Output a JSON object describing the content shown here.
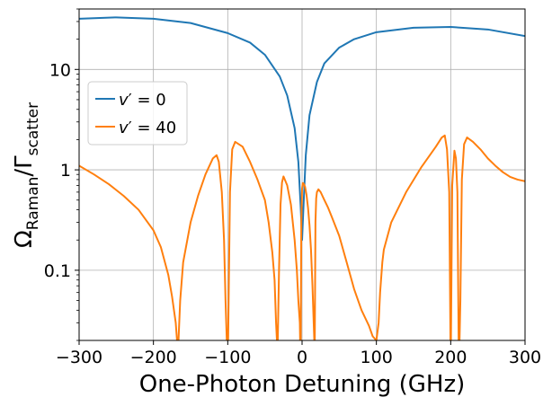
{
  "chart_data": {
    "type": "line",
    "xlabel": "One-Photon Detuning (GHz)",
    "ylabel": {
      "main": "Ω",
      "main_sub": "Raman",
      "sep": "/Γ",
      "sep_sub": "scatter"
    },
    "xlim": [
      -300,
      300
    ],
    "ylim": [
      0.02,
      40
    ],
    "yscale": "log",
    "grid": true,
    "x_ticks": [
      -300,
      -200,
      -100,
      0,
      100,
      200,
      300
    ],
    "x_tick_labels": [
      "−300",
      "−200",
      "−100",
      "0",
      "100",
      "200",
      "300"
    ],
    "y_ticks": [
      0.1,
      1,
      10
    ],
    "y_tick_labels": [
      "0.1",
      "1",
      "10"
    ],
    "legend_position": "upper-left",
    "series": [
      {
        "name": "v' = 0",
        "legend_main": "v",
        "legend_rest": "′ = 0",
        "color": "#1f77b4",
        "x": [
          -300,
          -250,
          -200,
          -150,
          -100,
          -70,
          -50,
          -30,
          -20,
          -10,
          -5,
          -2,
          0,
          2,
          5,
          10,
          20,
          30,
          50,
          70,
          100,
          150,
          200,
          250,
          300
        ],
        "y": [
          32,
          33,
          32,
          29,
          23,
          18.5,
          14,
          8.5,
          5.5,
          2.6,
          1.2,
          0.45,
          0.2,
          0.45,
          1.4,
          3.5,
          7.5,
          11.5,
          16.5,
          20,
          23.5,
          26,
          26.5,
          25,
          21.5
        ]
      },
      {
        "name": "v' = 40",
        "legend_main": "v",
        "legend_rest": "′ = 40",
        "color": "#ff7f0e",
        "x": [
          -300,
          -280,
          -260,
          -240,
          -220,
          -200,
          -190,
          -180,
          -175,
          -170,
          -167,
          -164,
          -160,
          -150,
          -140,
          -130,
          -120,
          -115,
          -112,
          -108,
          -105,
          -103,
          -100,
          -97,
          -94,
          -90,
          -80,
          -70,
          -60,
          -50,
          -45,
          -40,
          -37,
          -35,
          -33,
          -31,
          -29,
          -27,
          -25,
          -20,
          -15,
          -10,
          -7,
          -5,
          -3,
          -2,
          -1,
          0,
          1,
          2,
          4,
          6,
          8,
          10,
          12,
          14,
          16,
          17,
          18,
          19,
          20,
          22,
          25,
          30,
          35,
          40,
          50,
          60,
          70,
          80,
          90,
          95,
          100,
          103,
          105,
          108,
          110,
          120,
          140,
          160,
          180,
          188,
          192,
          195,
          198,
          200,
          202,
          205,
          207,
          209,
          211,
          213,
          215,
          218,
          222,
          230,
          240,
          250,
          260,
          270,
          280,
          290,
          300
        ],
        "y": [
          1.1,
          0.9,
          0.72,
          0.55,
          0.4,
          0.25,
          0.17,
          0.09,
          0.055,
          0.03,
          0.015,
          0.05,
          0.12,
          0.3,
          0.55,
          0.9,
          1.3,
          1.4,
          1.2,
          0.6,
          0.2,
          0.05,
          0.01,
          0.6,
          1.6,
          1.9,
          1.7,
          1.2,
          0.8,
          0.5,
          0.3,
          0.15,
          0.08,
          0.03,
          0.015,
          0.1,
          0.45,
          0.75,
          0.86,
          0.7,
          0.45,
          0.2,
          0.1,
          0.05,
          0.03,
          0.01,
          0.3,
          0.65,
          0.74,
          0.73,
          0.68,
          0.56,
          0.42,
          0.28,
          0.16,
          0.07,
          0.025,
          0.015,
          0.3,
          0.52,
          0.6,
          0.64,
          0.6,
          0.5,
          0.42,
          0.34,
          0.22,
          0.12,
          0.065,
          0.04,
          0.028,
          0.022,
          0.02,
          0.03,
          0.06,
          0.12,
          0.16,
          0.3,
          0.6,
          1.05,
          1.7,
          2.1,
          2.2,
          1.6,
          0.6,
          0.01,
          0.7,
          1.55,
          1.3,
          0.6,
          0.01,
          0.05,
          0.8,
          1.8,
          2.1,
          1.9,
          1.6,
          1.3,
          1.1,
          0.95,
          0.85,
          0.8,
          0.77
        ]
      }
    ]
  }
}
